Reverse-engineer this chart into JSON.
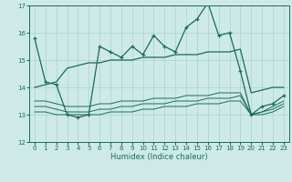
{
  "xlabel": "Humidex (Indice chaleur)",
  "x": [
    0,
    1,
    2,
    3,
    4,
    5,
    6,
    7,
    8,
    9,
    10,
    11,
    12,
    13,
    14,
    15,
    16,
    17,
    18,
    19,
    20,
    21,
    22,
    23
  ],
  "line_main": [
    15.8,
    14.2,
    14.1,
    13.0,
    12.9,
    13.0,
    15.5,
    15.3,
    15.1,
    15.5,
    15.2,
    15.9,
    15.5,
    15.3,
    16.2,
    16.5,
    17.1,
    15.9,
    16.0,
    14.6,
    13.0,
    13.3,
    13.4,
    13.7
  ],
  "line_upper": [
    14.0,
    14.1,
    14.2,
    14.7,
    14.8,
    14.9,
    14.9,
    15.0,
    15.0,
    15.0,
    15.1,
    15.1,
    15.1,
    15.2,
    15.2,
    15.2,
    15.3,
    15.3,
    15.3,
    15.4,
    13.8,
    13.9,
    14.0,
    14.0
  ],
  "line_mid1": [
    13.5,
    13.5,
    13.4,
    13.3,
    13.3,
    13.3,
    13.4,
    13.4,
    13.5,
    13.5,
    13.5,
    13.6,
    13.6,
    13.6,
    13.7,
    13.7,
    13.7,
    13.8,
    13.8,
    13.8,
    13.0,
    13.1,
    13.3,
    13.5
  ],
  "line_mid2": [
    13.3,
    13.3,
    13.2,
    13.1,
    13.1,
    13.1,
    13.2,
    13.2,
    13.3,
    13.3,
    13.4,
    13.4,
    13.4,
    13.5,
    13.5,
    13.5,
    13.6,
    13.6,
    13.6,
    13.7,
    13.0,
    13.1,
    13.2,
    13.4
  ],
  "line_low": [
    13.1,
    13.1,
    13.0,
    13.0,
    13.0,
    13.0,
    13.0,
    13.1,
    13.1,
    13.1,
    13.2,
    13.2,
    13.3,
    13.3,
    13.3,
    13.4,
    13.4,
    13.4,
    13.5,
    13.5,
    13.0,
    13.0,
    13.1,
    13.3
  ],
  "line_color": "#1a6b5a",
  "bg_color": "#ceeae6",
  "grid_color": "#a8d4d0",
  "ylim": [
    12,
    17
  ],
  "yticks": [
    12,
    13,
    14,
    15,
    16,
    17
  ],
  "xticks": [
    0,
    1,
    2,
    3,
    4,
    5,
    6,
    7,
    8,
    9,
    10,
    11,
    12,
    13,
    14,
    15,
    16,
    17,
    18,
    19,
    20,
    21,
    22,
    23
  ]
}
